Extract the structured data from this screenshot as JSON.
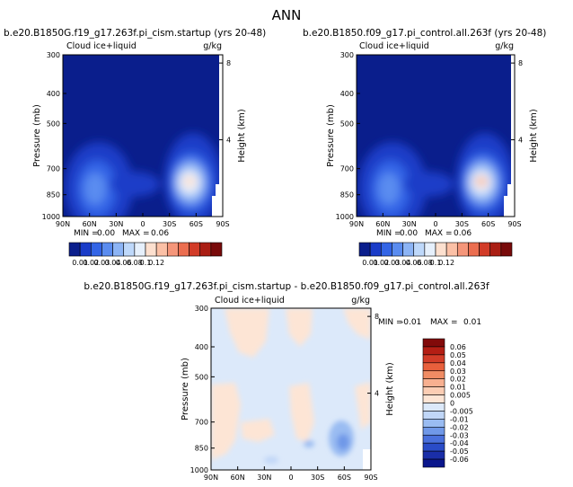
{
  "page": {
    "title": "ANN"
  },
  "panels": [
    {
      "title": "b.e20.B1850G.f19_g17.263f.pi_cism.startup (yrs 20-48)",
      "variable": "Cloud ice+liquid",
      "units": "g/kg",
      "ylabel": "Pressure (mb)",
      "ylabel_right": "Height (km)",
      "stats": {
        "min_label": "MIN =",
        "min": "0.00",
        "max_label": "MAX =",
        "max": "0.06"
      }
    },
    {
      "title": "b.e20.B1850.f09_g17.pi_control.all.263f (yrs 20-48)",
      "variable": "Cloud ice+liquid",
      "units": "g/kg",
      "ylabel": "Pressure (mb)",
      "ylabel_right": "Height (km)",
      "stats": {
        "min_label": "MIN =",
        "min": "0.00",
        "max_label": "MAX =",
        "max": "0.06"
      }
    },
    {
      "title": "b.e20.B1850G.f19_g17.263f.pi_cism.startup - b.e20.B1850.f09_g17.pi_control.all.263f",
      "variable": "Cloud ice+liquid",
      "units": "g/kg",
      "ylabel": "Pressure (mb)",
      "ylabel_right": "Height (km)",
      "stats": {
        "min_label": "MIN =",
        "min": "-0.01",
        "max_label": "MAX =",
        "max": "0.01"
      }
    }
  ],
  "chart_data": [
    {
      "type": "heatmap",
      "title": "b.e20.B1850G.f19_g17.263f.pi_cism.startup (yrs 20-48)",
      "variable": "Cloud ice+liquid (g/kg)",
      "xlabel": "latitude",
      "x_ticks": [
        "90N",
        "60N",
        "30N",
        "0",
        "30S",
        "60S",
        "90S"
      ],
      "ylabel": "Pressure (mb)",
      "y_ticks": [
        "300",
        "400",
        "500",
        "700",
        "850",
        "1000"
      ],
      "y2label": "Height (km)",
      "y2_ticks": [
        "8",
        "4"
      ],
      "min": 0.0,
      "max": 0.06,
      "features": [
        {
          "lat": -50,
          "p": 850,
          "value": 0.06
        },
        {
          "lat": 65,
          "p": 850,
          "value": 0.03
        },
        {
          "lat": 30,
          "p": 900,
          "value": 0.01
        }
      ]
    },
    {
      "type": "heatmap",
      "title": "b.e20.B1850.f09_g17.pi_control.all.263f (yrs 20-48)",
      "variable": "Cloud ice+liquid (g/kg)",
      "xlabel": "latitude",
      "x_ticks": [
        "90N",
        "60N",
        "30N",
        "0",
        "30S",
        "60S",
        "90S"
      ],
      "ylabel": "Pressure (mb)",
      "y_ticks": [
        "300",
        "400",
        "500",
        "700",
        "850",
        "1000"
      ],
      "y2label": "Height (km)",
      "y2_ticks": [
        "8",
        "4"
      ],
      "min": 0.0,
      "max": 0.06,
      "features": [
        {
          "lat": -50,
          "p": 850,
          "value": 0.06
        },
        {
          "lat": 65,
          "p": 850,
          "value": 0.03
        },
        {
          "lat": 30,
          "p": 900,
          "value": 0.01
        }
      ]
    },
    {
      "type": "heatmap",
      "title": "b.e20.B1850G.f19_g17.263f.pi_cism.startup - b.e20.B1850.f09_g17.pi_control.all.263f",
      "variable": "Cloud ice+liquid (g/kg)",
      "xlabel": "latitude",
      "x_ticks": [
        "90N",
        "60N",
        "30N",
        "0",
        "30S",
        "60S",
        "90S"
      ],
      "ylabel": "Pressure (mb)",
      "y_ticks": [
        "300",
        "400",
        "500",
        "700",
        "850",
        "1000"
      ],
      "y2label": "Height (km)",
      "y2_ticks": [
        "8",
        "4"
      ],
      "min": -0.01,
      "max": 0.01,
      "features": [
        {
          "lat": 60,
          "p": 400,
          "value": 0.005
        },
        {
          "lat": -55,
          "p": 880,
          "value": -0.01
        },
        {
          "lat": 30,
          "p": 800,
          "value": 0.005
        }
      ]
    }
  ],
  "colorbars": {
    "abs": {
      "labels": [
        "0.01",
        "0.02",
        "0.03",
        "0.04",
        "0.06",
        "0.08",
        "0.1",
        "0.12"
      ],
      "colors": [
        "#0a1e8c",
        "#1a3cc8",
        "#3264e6",
        "#5a8cf0",
        "#8cb4f5",
        "#bed8fa",
        "#e6f0fc",
        "#fde0cf",
        "#fbc0a6",
        "#f5967a",
        "#eb6e50",
        "#d23c28",
        "#aa1e14",
        "#780a0a"
      ]
    },
    "diff": {
      "labels": [
        "0.06",
        "0.05",
        "0.04",
        "0.03",
        "0.02",
        "0.01",
        "0.005",
        "0",
        "-0.005",
        "-0.01",
        "-0.02",
        "-0.03",
        "-0.04",
        "-0.05",
        "-0.06"
      ],
      "colors": [
        "#820a0a",
        "#b41e14",
        "#d23c28",
        "#e8603c",
        "#f08c64",
        "#f8b090",
        "#fbcdb4",
        "#fde5d5",
        "#dce9fa",
        "#c0d6f7",
        "#9abcf2",
        "#7098e8",
        "#4a70dc",
        "#2a4cc8",
        "#1a2ea8",
        "#0a168c"
      ]
    }
  }
}
